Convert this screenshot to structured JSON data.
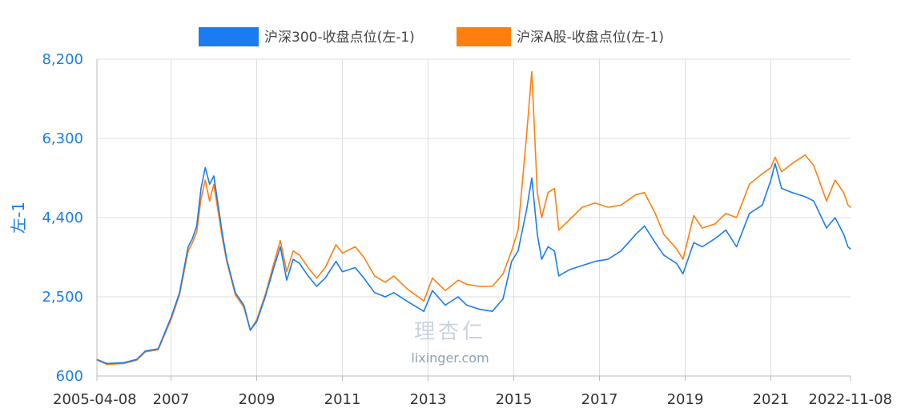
{
  "chart_data": {
    "type": "line",
    "ylabel": "左-1",
    "ylim": [
      600,
      8200
    ],
    "yticks": [
      "8,200",
      "6,300",
      "4,400",
      "2,500",
      "600"
    ],
    "ytick_values": [
      8200,
      6300,
      4400,
      2500,
      600
    ],
    "xticks": [
      "2005-04-08",
      "2007",
      "2009",
      "2011",
      "2013",
      "2015",
      "2017",
      "2019",
      "2021",
      "2022-11-08"
    ],
    "xtick_years": [
      2005.27,
      2007.0,
      2009.0,
      2011.0,
      2013.0,
      2015.0,
      2017.0,
      2019.0,
      2021.0,
      2022.86
    ],
    "xlim": [
      2005.27,
      2022.86
    ],
    "grid": true,
    "legend_position": "top-center",
    "series": [
      {
        "name": "沪深300-收盘点位(左-1)",
        "color": "#1a7cf0",
        "points": [
          [
            2005.27,
            1000
          ],
          [
            2005.5,
            900
          ],
          [
            2005.9,
            920
          ],
          [
            2006.2,
            1000
          ],
          [
            2006.4,
            1200
          ],
          [
            2006.7,
            1250
          ],
          [
            2007.0,
            2000
          ],
          [
            2007.2,
            2600
          ],
          [
            2007.4,
            3700
          ],
          [
            2007.5,
            3900
          ],
          [
            2007.6,
            4200
          ],
          [
            2007.7,
            5100
          ],
          [
            2007.8,
            5600
          ],
          [
            2007.9,
            5200
          ],
          [
            2008.0,
            5400
          ],
          [
            2008.2,
            4000
          ],
          [
            2008.3,
            3400
          ],
          [
            2008.5,
            2600
          ],
          [
            2008.7,
            2300
          ],
          [
            2008.85,
            1700
          ],
          [
            2009.0,
            1900
          ],
          [
            2009.2,
            2500
          ],
          [
            2009.4,
            3200
          ],
          [
            2009.55,
            3700
          ],
          [
            2009.7,
            2900
          ],
          [
            2009.85,
            3400
          ],
          [
            2010.0,
            3300
          ],
          [
            2010.2,
            3000
          ],
          [
            2010.4,
            2750
          ],
          [
            2010.6,
            2950
          ],
          [
            2010.85,
            3350
          ],
          [
            2011.0,
            3100
          ],
          [
            2011.3,
            3200
          ],
          [
            2011.5,
            2950
          ],
          [
            2011.75,
            2600
          ],
          [
            2012.0,
            2500
          ],
          [
            2012.2,
            2600
          ],
          [
            2012.5,
            2400
          ],
          [
            2012.9,
            2150
          ],
          [
            2013.1,
            2650
          ],
          [
            2013.4,
            2300
          ],
          [
            2013.7,
            2500
          ],
          [
            2013.9,
            2300
          ],
          [
            2014.2,
            2200
          ],
          [
            2014.5,
            2150
          ],
          [
            2014.75,
            2450
          ],
          [
            2014.95,
            3350
          ],
          [
            2015.1,
            3600
          ],
          [
            2015.3,
            4600
          ],
          [
            2015.42,
            5350
          ],
          [
            2015.55,
            4000
          ],
          [
            2015.65,
            3400
          ],
          [
            2015.8,
            3700
          ],
          [
            2015.95,
            3600
          ],
          [
            2016.05,
            3000
          ],
          [
            2016.3,
            3150
          ],
          [
            2016.6,
            3250
          ],
          [
            2016.9,
            3350
          ],
          [
            2017.2,
            3400
          ],
          [
            2017.5,
            3600
          ],
          [
            2017.85,
            4000
          ],
          [
            2018.05,
            4200
          ],
          [
            2018.3,
            3800
          ],
          [
            2018.5,
            3500
          ],
          [
            2018.8,
            3300
          ],
          [
            2018.95,
            3050
          ],
          [
            2019.2,
            3800
          ],
          [
            2019.4,
            3700
          ],
          [
            2019.7,
            3900
          ],
          [
            2019.95,
            4100
          ],
          [
            2020.2,
            3700
          ],
          [
            2020.5,
            4500
          ],
          [
            2020.8,
            4700
          ],
          [
            2021.0,
            5300
          ],
          [
            2021.1,
            5700
          ],
          [
            2021.25,
            5100
          ],
          [
            2021.5,
            5000
          ],
          [
            2021.8,
            4900
          ],
          [
            2022.0,
            4800
          ],
          [
            2022.3,
            4150
          ],
          [
            2022.5,
            4400
          ],
          [
            2022.7,
            4000
          ],
          [
            2022.8,
            3700
          ],
          [
            2022.86,
            3650
          ]
        ]
      },
      {
        "name": "沪深A股-收盘点位(左-1)",
        "color": "#ff7f0e",
        "points": [
          [
            2005.27,
            980
          ],
          [
            2005.5,
            880
          ],
          [
            2005.9,
            900
          ],
          [
            2006.2,
            980
          ],
          [
            2006.4,
            1180
          ],
          [
            2006.7,
            1230
          ],
          [
            2007.0,
            1950
          ],
          [
            2007.2,
            2550
          ],
          [
            2007.4,
            3600
          ],
          [
            2007.5,
            3800
          ],
          [
            2007.6,
            4050
          ],
          [
            2007.7,
            4850
          ],
          [
            2007.8,
            5300
          ],
          [
            2007.9,
            4800
          ],
          [
            2008.0,
            5200
          ],
          [
            2008.2,
            3900
          ],
          [
            2008.3,
            3350
          ],
          [
            2008.5,
            2550
          ],
          [
            2008.7,
            2250
          ],
          [
            2008.85,
            1700
          ],
          [
            2009.0,
            1950
          ],
          [
            2009.2,
            2550
          ],
          [
            2009.4,
            3300
          ],
          [
            2009.55,
            3850
          ],
          [
            2009.7,
            3100
          ],
          [
            2009.85,
            3600
          ],
          [
            2010.0,
            3500
          ],
          [
            2010.2,
            3200
          ],
          [
            2010.4,
            2950
          ],
          [
            2010.6,
            3200
          ],
          [
            2010.85,
            3750
          ],
          [
            2011.0,
            3550
          ],
          [
            2011.3,
            3700
          ],
          [
            2011.5,
            3450
          ],
          [
            2011.75,
            3000
          ],
          [
            2012.0,
            2850
          ],
          [
            2012.2,
            3000
          ],
          [
            2012.5,
            2700
          ],
          [
            2012.9,
            2400
          ],
          [
            2013.1,
            2950
          ],
          [
            2013.4,
            2650
          ],
          [
            2013.7,
            2900
          ],
          [
            2013.9,
            2800
          ],
          [
            2014.2,
            2750
          ],
          [
            2014.5,
            2750
          ],
          [
            2014.75,
            3050
          ],
          [
            2014.95,
            3600
          ],
          [
            2015.1,
            4100
          ],
          [
            2015.3,
            6400
          ],
          [
            2015.42,
            7900
          ],
          [
            2015.55,
            5000
          ],
          [
            2015.65,
            4400
          ],
          [
            2015.8,
            5000
          ],
          [
            2015.95,
            5100
          ],
          [
            2016.05,
            4100
          ],
          [
            2016.3,
            4350
          ],
          [
            2016.6,
            4650
          ],
          [
            2016.9,
            4750
          ],
          [
            2017.2,
            4650
          ],
          [
            2017.5,
            4700
          ],
          [
            2017.85,
            4950
          ],
          [
            2018.05,
            5000
          ],
          [
            2018.3,
            4500
          ],
          [
            2018.5,
            4000
          ],
          [
            2018.8,
            3650
          ],
          [
            2018.95,
            3400
          ],
          [
            2019.2,
            4450
          ],
          [
            2019.4,
            4150
          ],
          [
            2019.7,
            4250
          ],
          [
            2019.95,
            4500
          ],
          [
            2020.2,
            4400
          ],
          [
            2020.5,
            5200
          ],
          [
            2020.8,
            5450
          ],
          [
            2021.0,
            5600
          ],
          [
            2021.1,
            5850
          ],
          [
            2021.25,
            5500
          ],
          [
            2021.5,
            5700
          ],
          [
            2021.8,
            5900
          ],
          [
            2022.0,
            5650
          ],
          [
            2022.3,
            4800
          ],
          [
            2022.5,
            5300
          ],
          [
            2022.7,
            5000
          ],
          [
            2022.8,
            4700
          ],
          [
            2022.86,
            4650
          ]
        ]
      }
    ]
  },
  "watermark": {
    "cn": "理杏仁",
    "en": "lixinger.com"
  }
}
